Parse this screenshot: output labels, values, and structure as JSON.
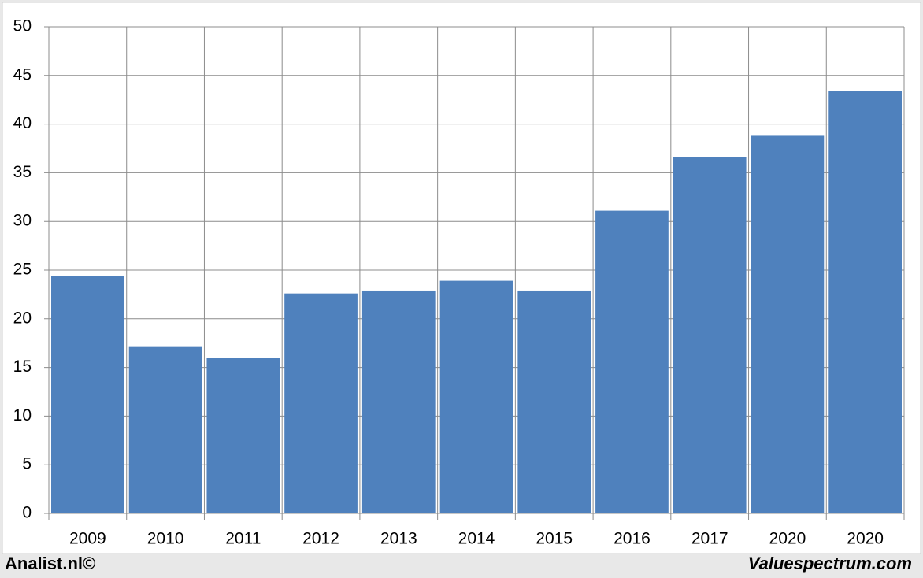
{
  "chart_data": {
    "type": "bar",
    "categories": [
      "2009",
      "2010",
      "2011",
      "2012",
      "2013",
      "2014",
      "2015",
      "2016",
      "2017",
      "2020",
      "2020"
    ],
    "values": [
      24.4,
      17.1,
      16.0,
      22.6,
      22.9,
      23.9,
      22.9,
      31.1,
      36.6,
      38.8,
      43.4
    ],
    "color": "#4f81bd",
    "ylim": [
      0,
      50
    ],
    "yticks": [
      0,
      5,
      10,
      15,
      20,
      25,
      30,
      35,
      40,
      45,
      50
    ],
    "grid": true,
    "annotations": [
      "Analist.nl©",
      "Valuespectrum.com"
    ]
  }
}
